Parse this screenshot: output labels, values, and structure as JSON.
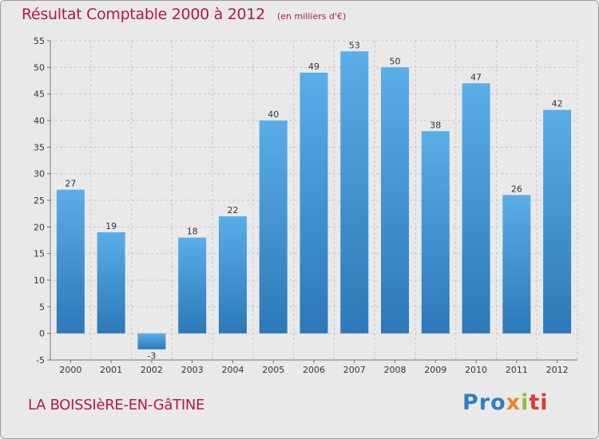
{
  "title": "Résultat Comptable 2000 à 2012",
  "subtitle": "(en milliers d'€)",
  "place": "LA BOISSIèRE-EN-GâTINE",
  "logo": [
    "Pro",
    "x",
    "i",
    "ti"
  ],
  "colors": {
    "accent": "#b5174b",
    "bar_top": "#5aaee8",
    "bar_bottom": "#2c78b8",
    "grid": "#c8c8c8"
  },
  "chart_data": {
    "type": "bar",
    "title": "Résultat Comptable 2000 à 2012",
    "subtitle": "(en milliers d'€)",
    "xlabel": "",
    "ylabel": "",
    "categories": [
      "2000",
      "2001",
      "2002",
      "2003",
      "2004",
      "2005",
      "2006",
      "2007",
      "2008",
      "2009",
      "2010",
      "2011",
      "2012"
    ],
    "values": [
      27,
      19,
      -3,
      18,
      22,
      40,
      49,
      53,
      50,
      38,
      47,
      26,
      42
    ],
    "ylim": [
      -5,
      55
    ],
    "yticks": [
      -5,
      0,
      5,
      10,
      15,
      20,
      25,
      30,
      35,
      40,
      45,
      50,
      55
    ],
    "grid": true
  }
}
